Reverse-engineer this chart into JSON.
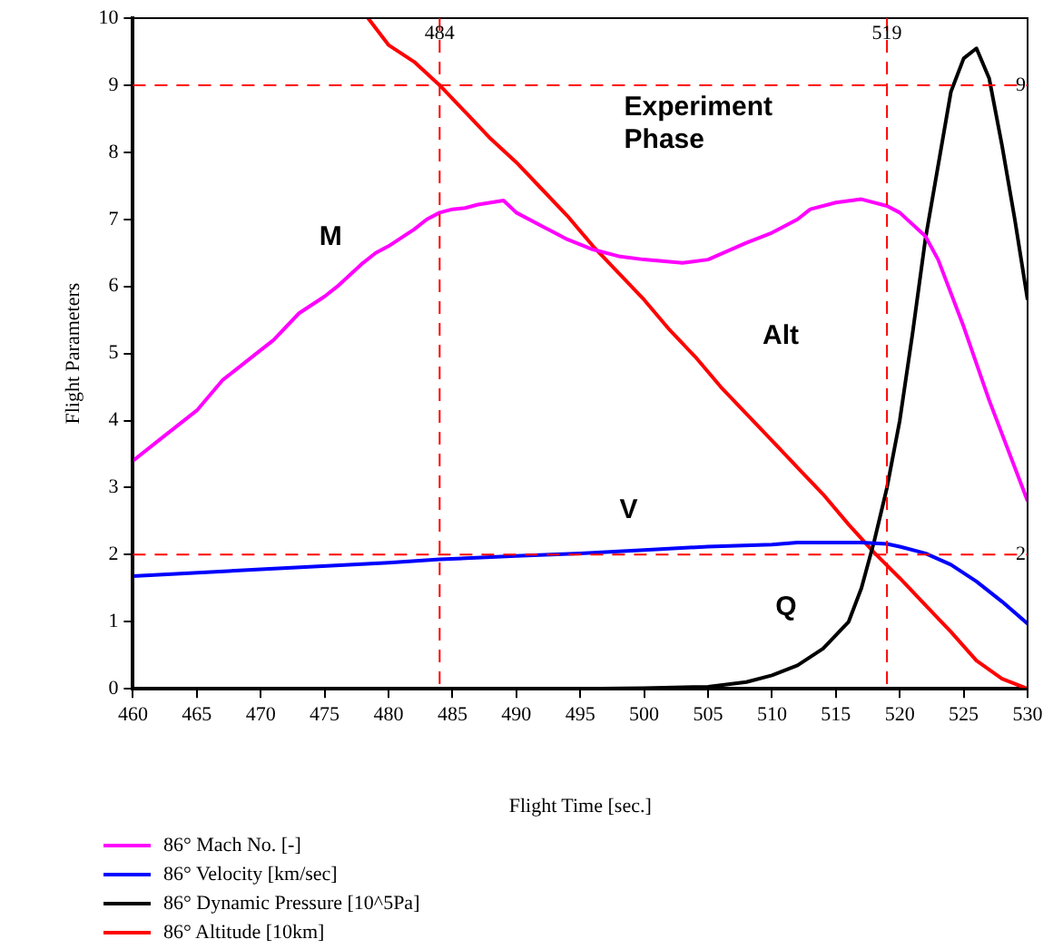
{
  "chart_data": {
    "type": "line",
    "xlabel": "Flight Time [sec.]",
    "ylabel": "Flight Parameters",
    "xlim": [
      460,
      530
    ],
    "xticks": [
      460,
      465,
      470,
      475,
      480,
      485,
      490,
      495,
      500,
      505,
      510,
      515,
      520,
      525,
      530
    ],
    "ylim": [
      0,
      10
    ],
    "yticks": [
      0,
      1,
      2,
      3,
      4,
      5,
      6,
      7,
      8,
      9,
      10
    ],
    "grid": false,
    "legend": "bottom",
    "marker": "none",
    "line_style": "solid",
    "series": [
      {
        "name": "86° Mach No. [-]",
        "color": "#ff00ff",
        "x": [
          460,
          462,
          465,
          467,
          468,
          470,
          471,
          473,
          475,
          476,
          478,
          479,
          480,
          482,
          483,
          484,
          485,
          486,
          487,
          489,
          490,
          492,
          494,
          496,
          498,
          500,
          503,
          505,
          508,
          510,
          512,
          513,
          515,
          517,
          519,
          520,
          522,
          523,
          525,
          527,
          530
        ],
        "values": [
          3.4,
          3.7,
          4.15,
          4.6,
          4.75,
          5.05,
          5.2,
          5.6,
          5.85,
          6.0,
          6.35,
          6.5,
          6.6,
          6.85,
          7.0,
          7.1,
          7.15,
          7.17,
          7.22,
          7.28,
          7.1,
          6.9,
          6.7,
          6.55,
          6.45,
          6.4,
          6.35,
          6.4,
          6.65,
          6.8,
          7.0,
          7.15,
          7.25,
          7.3,
          7.2,
          7.1,
          6.75,
          6.4,
          5.4,
          4.3,
          2.8
        ]
      },
      {
        "name": "86° Velocity [km/sec]",
        "color": "#0000ff",
        "x": [
          460,
          470,
          480,
          484,
          490,
          495,
          500,
          505,
          510,
          512,
          517,
          519,
          520,
          522,
          524,
          526,
          528,
          530
        ],
        "values": [
          1.68,
          1.78,
          1.88,
          1.93,
          1.98,
          2.02,
          2.07,
          2.12,
          2.15,
          2.18,
          2.18,
          2.16,
          2.12,
          2.02,
          1.85,
          1.6,
          1.3,
          0.97
        ]
      },
      {
        "name": "86° Dynamic Pressure [10^5Pa]",
        "color": "#000000",
        "x": [
          460,
          495,
          500,
          505,
          508,
          510,
          512,
          514,
          516,
          517,
          518,
          519,
          520,
          521,
          522,
          523,
          524,
          525,
          526,
          527,
          528,
          529,
          530
        ],
        "values": [
          0,
          0,
          0.01,
          0.03,
          0.1,
          0.2,
          0.35,
          0.6,
          1.0,
          1.5,
          2.2,
          3.0,
          4.0,
          5.3,
          6.7,
          7.8,
          8.9,
          9.4,
          9.55,
          9.1,
          8.1,
          7.0,
          5.8
        ]
      },
      {
        "name": "86° Altitude [10km]",
        "color": "#ff0000",
        "x": [
          478.4,
          480,
          482,
          484,
          486,
          488,
          490,
          492,
          494,
          496,
          498,
          500,
          502,
          504,
          506,
          508,
          510,
          512,
          514,
          516,
          518,
          520,
          522,
          524,
          526,
          528,
          530
        ],
        "values": [
          10,
          9.6,
          9.35,
          9.0,
          8.6,
          8.2,
          7.85,
          7.45,
          7.05,
          6.6,
          6.2,
          5.8,
          5.35,
          4.95,
          4.5,
          4.1,
          3.7,
          3.3,
          2.9,
          2.45,
          2.03,
          1.65,
          1.25,
          0.85,
          0.42,
          0.15,
          0
        ]
      }
    ],
    "ref_lines": [
      {
        "axis": "x",
        "value": 484,
        "label": "484",
        "color": "#ff0000",
        "line_style": "dashed"
      },
      {
        "axis": "x",
        "value": 519,
        "label": "519",
        "color": "#ff0000",
        "line_style": "dashed"
      },
      {
        "axis": "y",
        "value": 9,
        "label": "9",
        "color": "#ff0000",
        "line_style": "dashed"
      },
      {
        "axis": "y",
        "value": 2,
        "label": "2",
        "color": "#ff0000",
        "line_style": "dashed"
      }
    ],
    "annotations": [
      "M",
      "Alt",
      "V",
      "Q",
      "Experiment Phase"
    ]
  }
}
